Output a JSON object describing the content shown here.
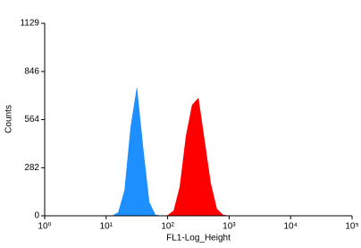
{
  "chart_data": {
    "type": "histogram-area",
    "x_label": "FL1-Log_Height",
    "y_label": "Counts",
    "log_x": true,
    "xlim": [
      1,
      100000
    ],
    "xticks": [
      {
        "value": 1,
        "label": "10⁰"
      },
      {
        "value": 10,
        "label": "10¹"
      },
      {
        "value": 100,
        "label": "10²"
      },
      {
        "value": 1000,
        "label": "10³"
      },
      {
        "value": 10000,
        "label": "10⁴"
      },
      {
        "value": 100000,
        "label": "10⁵"
      }
    ],
    "ylim": [
      0,
      1129
    ],
    "yticks": [
      0,
      282,
      564,
      846,
      1129
    ],
    "x": [
      10,
      12.6,
      15.8,
      20,
      25.1,
      31.6,
      39.8,
      50.1,
      63.1,
      79.4,
      100,
      126,
      158,
      200,
      251,
      316,
      398,
      501,
      631,
      794,
      1000
    ],
    "series": [
      {
        "color": "#1e8fff",
        "values": [
          0,
          0,
          20,
          150,
          520,
          750,
          400,
          80,
          5,
          0,
          0,
          0,
          0,
          0,
          0,
          0,
          0,
          0,
          0,
          0,
          0
        ]
      },
      {
        "color": "#ff0000",
        "values": [
          0,
          0,
          0,
          0,
          0,
          0,
          0,
          0,
          0,
          0,
          2,
          30,
          170,
          470,
          650,
          690,
          440,
          190,
          40,
          5,
          0
        ]
      }
    ]
  }
}
